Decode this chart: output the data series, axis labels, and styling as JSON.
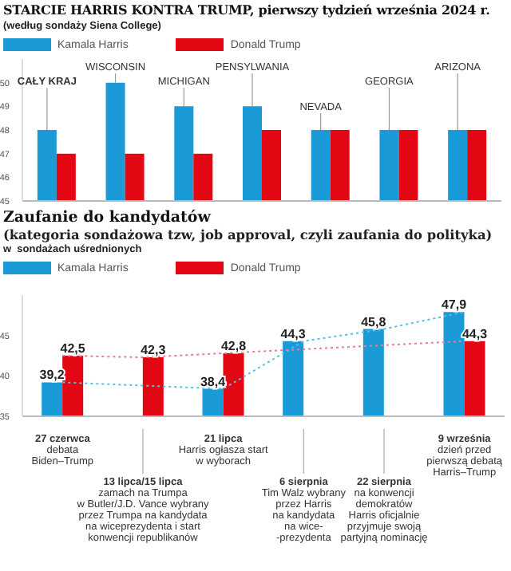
{
  "chart_data": [
    {
      "type": "bar",
      "title": "STARCIE HARRIS KONTRA TRUMP, pierwszy tydzień września 2024 r.",
      "subtitle": "(według sondaży Siena College)",
      "categories": [
        "CAŁY KRAJ",
        "WISCONSIN",
        "MICHIGAN",
        "PENSYLWANIA",
        "NEVADA",
        "GEORGIA",
        "ARIZONA"
      ],
      "series": [
        {
          "name": "Kamala Harris",
          "color": "#1a9bd7",
          "values": [
            48,
            50,
            49,
            49,
            48,
            48,
            48
          ]
        },
        {
          "name": "Donald Trump",
          "color": "#e30613",
          "values": [
            47,
            47,
            47,
            48,
            48,
            48,
            48
          ]
        }
      ],
      "ylim": [
        45,
        51
      ],
      "yticks": [
        45,
        46,
        47,
        48,
        49,
        50
      ],
      "legend": "top left"
    },
    {
      "type": "bar",
      "title": "Zaufanie do kandydatów",
      "subtitle": "(kategoria sondażowa tzw, job approval, czyli zaufania do polityka)\nw  sondażach uśrednionych",
      "categories": [
        "27 czerwca",
        "13 lipca/15 lipca",
        "21 lipca",
        "6 sierpnia",
        "22 sierpnia",
        "9 września"
      ],
      "series": [
        {
          "name": "Kamala Harris",
          "color": "#1a9bd7",
          "values": [
            39.2,
            null,
            38.4,
            44.3,
            45.8,
            47.9
          ],
          "value_labels": [
            "39,2",
            null,
            "38,4",
            "44,3",
            "45,8",
            "47,9"
          ]
        },
        {
          "name": "Donald Trump",
          "color": "#e30613",
          "values": [
            42.5,
            42.3,
            42.8,
            null,
            null,
            44.3
          ],
          "value_labels": [
            "42,5",
            "42,3",
            "42,8",
            null,
            null,
            "44,3"
          ]
        },
        {
          "type": "line",
          "color": "#4fc3e6",
          "line_style": "dotted",
          "values": [
            39.2,
            null,
            38.4,
            44.3,
            45.8,
            47.9
          ]
        },
        {
          "type": "line",
          "color": "#ec7d8c",
          "line_style": "dotted",
          "values": [
            42.5,
            42.3,
            42.8,
            null,
            null,
            44.3
          ]
        }
      ],
      "ylim": [
        35,
        50
      ],
      "yticks": [
        35,
        40,
        45
      ],
      "legend": "top left",
      "annotations": [
        "debata\nBiden–Trump",
        "zamach na Trumpa\nw Butler/J.D. Vance wybrany\nprzez Trumpa na kandydata\nna wiceprezydenta i start\nkonwencji republikanów",
        "Harris ogłasza start\nw wyborach",
        "Tim Walz wybrany\nprzez Harris\nna kandydata\nna wice-\n-prezydenta",
        "na konwencji\ndemokratów\nHarris oficjalnie\nprzyjmuje swoją\npartyjną nominację",
        "dzień przed\npierwszą debatą\nHarris–Trump"
      ]
    }
  ]
}
